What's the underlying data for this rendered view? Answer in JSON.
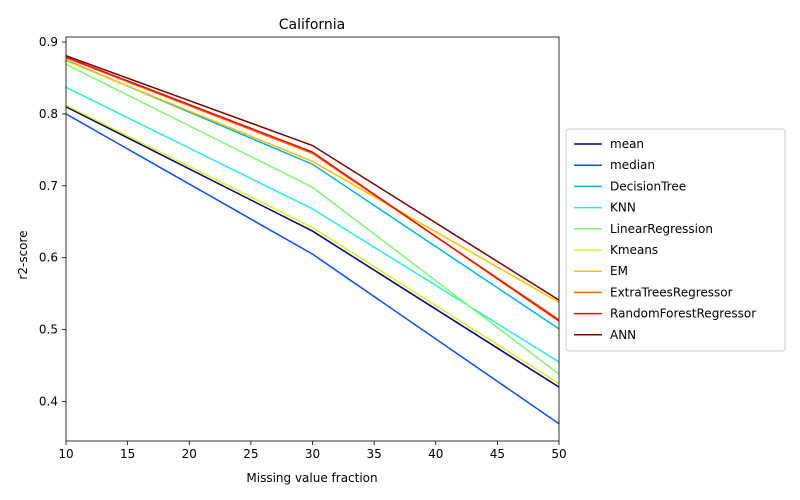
{
  "chart_data": {
    "type": "line",
    "title": "California",
    "xlabel": "Missing value fraction",
    "ylabel": "r2-score",
    "xlim": [
      10,
      50
    ],
    "ylim": [
      0.345,
      0.907
    ],
    "xticks": [
      10,
      15,
      20,
      25,
      30,
      35,
      40,
      45,
      50
    ],
    "yticks": [
      0.4,
      0.5,
      0.6,
      0.7,
      0.8,
      0.9
    ],
    "ytick_labels": [
      "0.4",
      "0.5",
      "0.6",
      "0.7",
      "0.8",
      "0.9"
    ],
    "grid": false,
    "legend_position": "center-right-outside",
    "x": [
      10,
      30,
      50
    ],
    "series": [
      {
        "name": "mean",
        "color": "#00008b",
        "values": [
          0.81,
          0.637,
          0.42
        ]
      },
      {
        "name": "median",
        "color": "#0a4ff0",
        "values": [
          0.8,
          0.605,
          0.369
        ]
      },
      {
        "name": "DecisionTree",
        "color": "#00b4e6",
        "values": [
          0.875,
          0.73,
          0.501
        ]
      },
      {
        "name": "KNN",
        "color": "#2cf0d0",
        "values": [
          0.837,
          0.668,
          0.455
        ]
      },
      {
        "name": "LinearRegression",
        "color": "#7cf870",
        "values": [
          0.869,
          0.698,
          0.438
        ]
      },
      {
        "name": "Kmeans",
        "color": "#d4f820",
        "values": [
          0.812,
          0.642,
          0.425
        ]
      },
      {
        "name": "EM",
        "color": "#ffc000",
        "values": [
          0.874,
          0.734,
          0.538
        ]
      },
      {
        "name": "ExtraTreesRegressor",
        "color": "#ff6a00",
        "values": [
          0.878,
          0.745,
          0.514
        ]
      },
      {
        "name": "RandomForestRegressor",
        "color": "#e81000",
        "values": [
          0.879,
          0.747,
          0.512
        ]
      },
      {
        "name": "ANN",
        "color": "#800000",
        "values": [
          0.881,
          0.756,
          0.541
        ]
      }
    ]
  }
}
